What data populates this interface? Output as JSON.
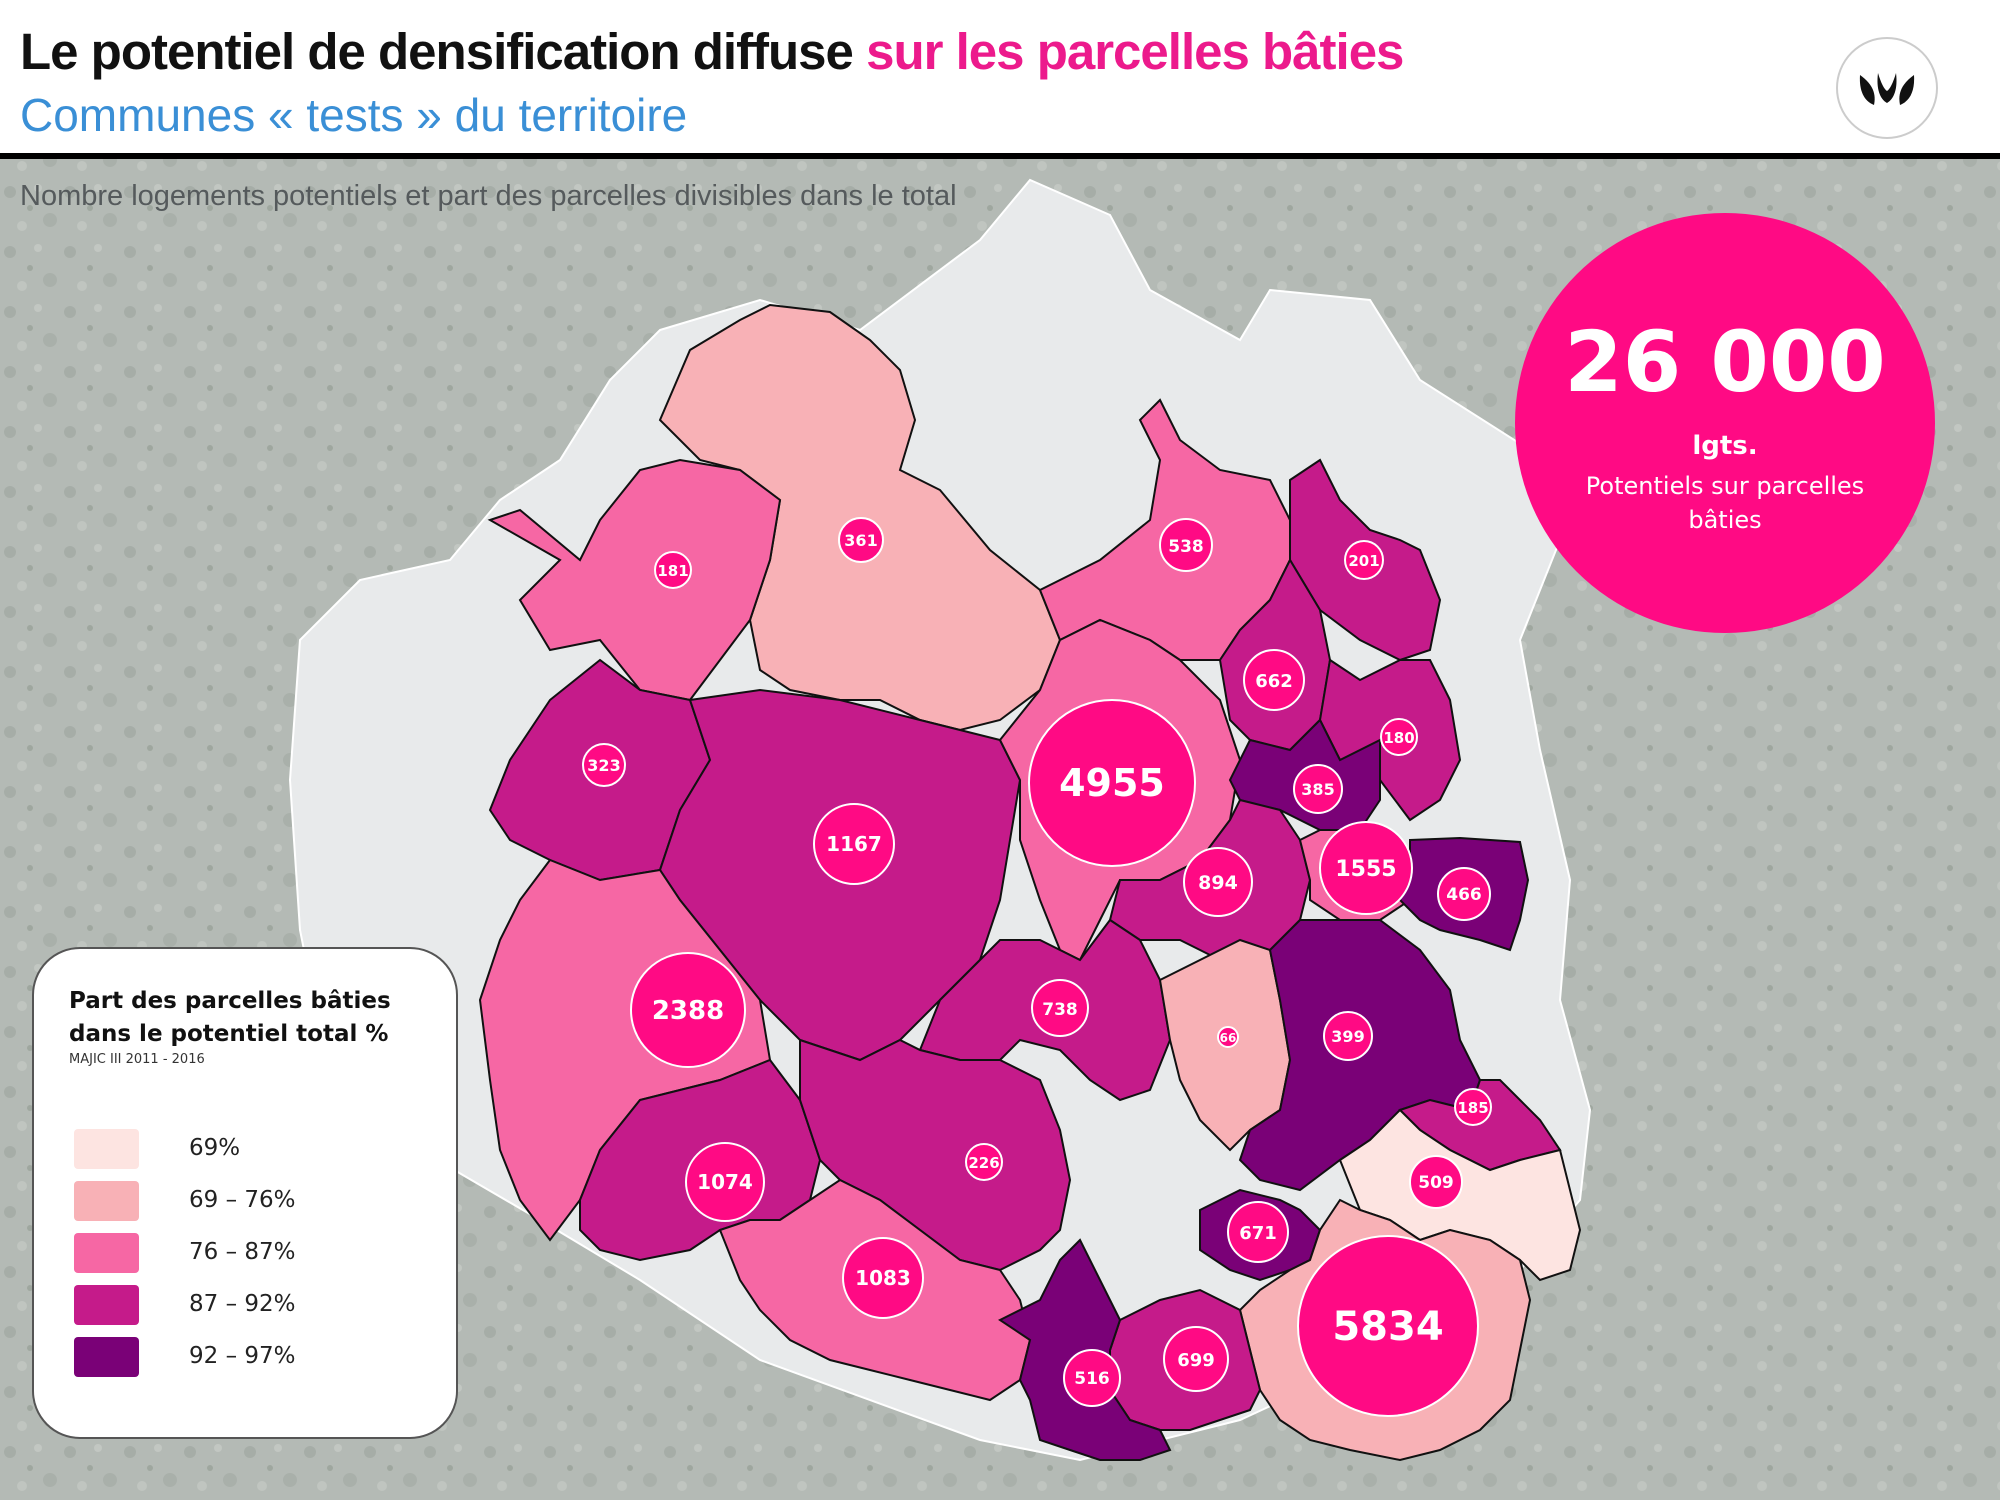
{
  "header": {
    "title_part1": "Le potentiel de densification diffuse",
    "title_part2": "sur les parcelles bâties",
    "subtitle": "Communes « tests » du territoire",
    "logo_icon": "leaf-logo-icon"
  },
  "caption": "Nombre logements potentiels et part des parcelles divisibles dans le total",
  "total": {
    "value": "26 000",
    "unit": "lgts.",
    "description": "Potentiels sur parcelles bâties",
    "color": "#ff0a84"
  },
  "legend": {
    "title": "Part des parcelles bâties dans le potentiel total %",
    "source": "MAJIC III 2011 - 2016",
    "classes": [
      {
        "label": "69%",
        "color": "#fde4e1"
      },
      {
        "label": "69 – 76%",
        "color": "#f8b1b6"
      },
      {
        "label": "76 – 87%",
        "color": "#f667a4"
      },
      {
        "label": "87 – 92%",
        "color": "#c51b8a"
      },
      {
        "label": "92 – 97%",
        "color": "#7a0177"
      }
    ]
  },
  "markers": [
    {
      "value": "181",
      "class": 2
    },
    {
      "value": "361",
      "class": 1
    },
    {
      "value": "538",
      "class": 2
    },
    {
      "value": "201",
      "class": 3
    },
    {
      "value": "662",
      "class": 3
    },
    {
      "value": "180",
      "class": 3
    },
    {
      "value": "385",
      "class": 4
    },
    {
      "value": "323",
      "class": 3
    },
    {
      "value": "1167",
      "class": 3
    },
    {
      "value": "4955",
      "class": 2
    },
    {
      "value": "894",
      "class": 3
    },
    {
      "value": "1555",
      "class": 2
    },
    {
      "value": "466",
      "class": 4
    },
    {
      "value": "2388",
      "class": 2
    },
    {
      "value": "738",
      "class": 3
    },
    {
      "value": "66",
      "class": 1
    },
    {
      "value": "399",
      "class": 4
    },
    {
      "value": "185",
      "class": 3
    },
    {
      "value": "1074",
      "class": 3
    },
    {
      "value": "226",
      "class": 3
    },
    {
      "value": "509",
      "class": 0
    },
    {
      "value": "671",
      "class": 4
    },
    {
      "value": "1083",
      "class": 2
    },
    {
      "value": "5834",
      "class": 1
    },
    {
      "value": "699",
      "class": 3
    },
    {
      "value": "516",
      "class": 4
    }
  ]
}
